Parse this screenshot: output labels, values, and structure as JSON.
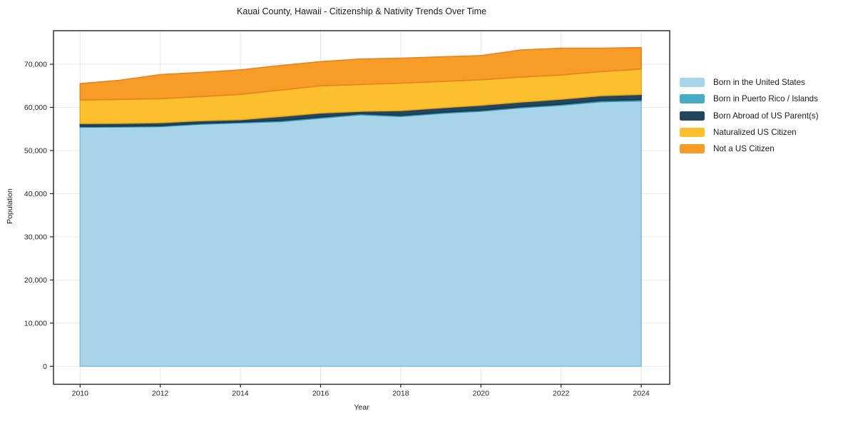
{
  "title": "Kauai County, Hawaii - Citizenship & Nativity Trends Over Time",
  "axes": {
    "xlabel": "Year",
    "ylabel": "Population",
    "xtick_values": [
      2010,
      2012,
      2014,
      2016,
      2018,
      2020,
      2022,
      2024
    ],
    "xtick_labels": [
      "2010",
      "2012",
      "2014",
      "2016",
      "2018",
      "2020",
      "2022",
      "2024"
    ],
    "ytick_values": [
      0,
      10000,
      20000,
      30000,
      40000,
      50000,
      60000,
      70000
    ],
    "ytick_labels": [
      "0",
      "10,000",
      "20,000",
      "30,000",
      "40,000",
      "50,000",
      "60,000",
      "70,000"
    ],
    "grid": true
  },
  "chart_data": {
    "type": "area",
    "stacked": true,
    "title": "Kauai County, Hawaii - Citizenship & Nativity Trends Over Time",
    "xlabel": "Year",
    "ylabel": "Population",
    "legend_position": "outside-right",
    "x": [
      2010,
      2011,
      2012,
      2013,
      2014,
      2015,
      2016,
      2017,
      2018,
      2019,
      2020,
      2021,
      2022,
      2023,
      2024
    ],
    "series": [
      {
        "name": "Born in the United States",
        "color": "#a8d4ea",
        "edge": "#85bfdd",
        "values": [
          55400,
          55450,
          55550,
          56100,
          56400,
          56700,
          57500,
          58300,
          57900,
          58600,
          59100,
          59900,
          60500,
          61300,
          61500
        ]
      },
      {
        "name": "Born in Puerto Rico / Islands",
        "color": "#46acc4",
        "edge": "#2f94b0",
        "values": [
          200,
          200,
          200,
          200,
          200,
          250,
          250,
          250,
          250,
          250,
          250,
          250,
          250,
          300,
          300
        ]
      },
      {
        "name": "Born Abroad of US Parent(s)",
        "color": "#24465c",
        "edge": "#1a3648",
        "values": [
          650,
          650,
          700,
          600,
          550,
          950,
          950,
          550,
          1100,
          1050,
          1150,
          1100,
          1150,
          1100,
          1200
        ]
      },
      {
        "name": "Naturalized US Citizen",
        "color": "#fcc02e",
        "edge": "#edaa17",
        "values": [
          5450,
          5550,
          5560,
          5600,
          5850,
          6100,
          6300,
          6200,
          6350,
          6100,
          5900,
          5750,
          5600,
          5600,
          5900
        ]
      },
      {
        "name": "Not a US Citizen",
        "color": "#f89c28",
        "edge": "#e8821e",
        "values": [
          3800,
          4450,
          5590,
          5600,
          5700,
          5700,
          5600,
          5900,
          5800,
          5700,
          5600,
          6300,
          6200,
          5400,
          4950
        ]
      }
    ],
    "totals": [
      65500,
      66300,
      67600,
      68100,
      68700,
      69700,
      70600,
      71200,
      71400,
      71700,
      72000,
      73300,
      73700,
      73700,
      73850
    ],
    "xlim": [
      2010,
      2024
    ],
    "ytick_max": 70000
  },
  "style_colors": {
    "background": "#ffffff",
    "gridline": "#e7e7e7",
    "spine": "#222222",
    "text": "#1a1a1a"
  }
}
